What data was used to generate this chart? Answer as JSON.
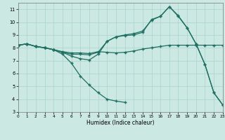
{
  "xlabel": "Humidex (Indice chaleur)",
  "bg_color": "#cbe8e3",
  "grid_color": "#a8d4cc",
  "line_color": "#1e6e62",
  "xlim": [
    0,
    23
  ],
  "ylim": [
    3,
    11.5
  ],
  "xticks": [
    0,
    1,
    2,
    3,
    4,
    5,
    6,
    7,
    8,
    9,
    10,
    11,
    12,
    13,
    14,
    15,
    16,
    17,
    18,
    19,
    20,
    21,
    22,
    23
  ],
  "yticks": [
    3,
    4,
    5,
    6,
    7,
    8,
    9,
    10,
    11
  ],
  "line1_y": [
    8.2,
    8.3,
    8.1,
    8.0,
    7.85,
    7.7,
    7.6,
    7.6,
    7.55,
    7.7,
    7.65,
    7.6,
    7.65,
    7.75,
    7.9,
    8.0,
    8.1,
    8.2,
    8.2,
    8.2,
    8.2,
    8.2,
    8.2,
    8.2
  ],
  "line2_y": [
    8.2,
    8.3,
    8.1,
    8.0,
    7.85,
    7.65,
    7.5,
    7.5,
    7.45,
    7.65,
    8.5,
    8.85,
    9.0,
    9.1,
    9.3,
    10.15,
    10.45,
    11.2,
    10.5,
    9.55,
    8.3,
    6.7,
    4.5,
    3.55
  ],
  "line3_y": [
    8.2,
    8.3,
    8.1,
    8.0,
    7.85,
    7.65,
    7.35,
    7.15,
    7.05,
    7.5,
    8.5,
    8.85,
    8.95,
    9.0,
    9.2,
    10.2,
    10.45,
    11.2,
    10.45,
    9.55,
    8.3,
    6.7,
    4.5,
    3.55
  ],
  "line4_y": [
    8.2,
    8.3,
    8.1,
    8.0,
    7.85,
    7.5,
    6.8,
    5.8,
    5.1,
    4.5,
    4.0,
    3.85,
    3.75,
    null,
    null,
    null,
    null,
    null,
    null,
    null,
    null,
    null,
    null,
    null
  ]
}
